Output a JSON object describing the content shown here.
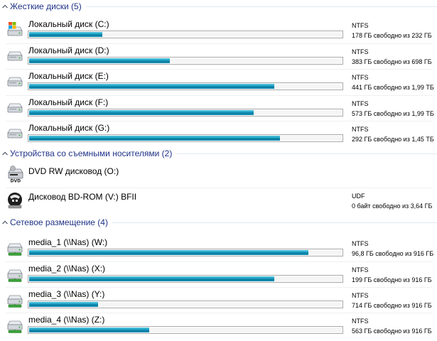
{
  "groups": {
    "hard_disks": {
      "title": "Жесткие диски (5)"
    },
    "removable": {
      "title": "Устройства со съемными носителями (2)"
    },
    "network": {
      "title": "Сетевое размещение (4)"
    }
  },
  "hard_disks": [
    {
      "name": "Локальный диск (C:)",
      "fs": "NTFS",
      "free": "178 ГБ свободно из 232 ГБ",
      "used_fraction": 0.233,
      "icon": "windows-drive-icon"
    },
    {
      "name": "Локальный диск (D:)",
      "fs": "NTFS",
      "free": "383 ГБ свободно из 698 ГБ",
      "used_fraction": 0.451,
      "icon": "hard-drive-icon"
    },
    {
      "name": "Локальный диск (E:)",
      "fs": "NTFS",
      "free": "441 ГБ свободно из 1,99 ТБ",
      "used_fraction": 0.784,
      "icon": "hard-drive-icon"
    },
    {
      "name": "Локальный диск (F:)",
      "fs": "NTFS",
      "free": "573 ГБ свободно из 1,99 ТБ",
      "used_fraction": 0.719,
      "icon": "hard-drive-icon"
    },
    {
      "name": "Локальный диск (G:)",
      "fs": "NTFS",
      "free": "292 ГБ свободно из 1,45 ТБ",
      "used_fraction": 0.803,
      "icon": "hard-drive-icon"
    }
  ],
  "removable": [
    {
      "name": "DVD RW дисковод (O:)",
      "fs": "",
      "free": "",
      "icon": "dvd-drive-icon"
    },
    {
      "name": "Дисковод BD-ROM (V:) BFII",
      "fs": "UDF",
      "free": "0 байт свободно из 3,64 ГБ",
      "icon": "bd-rom-disc-icon"
    }
  ],
  "network": [
    {
      "name": "media_1 (\\\\Nas) (W:)",
      "fs": "NTFS",
      "free": "96,8 ГБ свободно из 916 ГБ",
      "used_fraction": 0.894,
      "icon": "network-drive-icon"
    },
    {
      "name": "media_2 (\\\\Nas) (X:)",
      "fs": "NTFS",
      "free": "199 ГБ свободно из 916 ГБ",
      "used_fraction": 0.783,
      "icon": "network-drive-icon"
    },
    {
      "name": "media_3 (\\\\Nas) (Y:)",
      "fs": "NTFS",
      "free": "714 ГБ свободно из 916 ГБ",
      "used_fraction": 0.221,
      "icon": "network-drive-icon"
    },
    {
      "name": "media_4 (\\\\Nas) (Z:)",
      "fs": "NTFS",
      "free": "563 ГБ свободно из 916 ГБ",
      "used_fraction": 0.385,
      "icon": "network-drive-icon"
    }
  ],
  "colors": {
    "header_text": "#1e3287",
    "bar_fill": "#1aa1c4",
    "bar_border": "#a9a9a9"
  }
}
